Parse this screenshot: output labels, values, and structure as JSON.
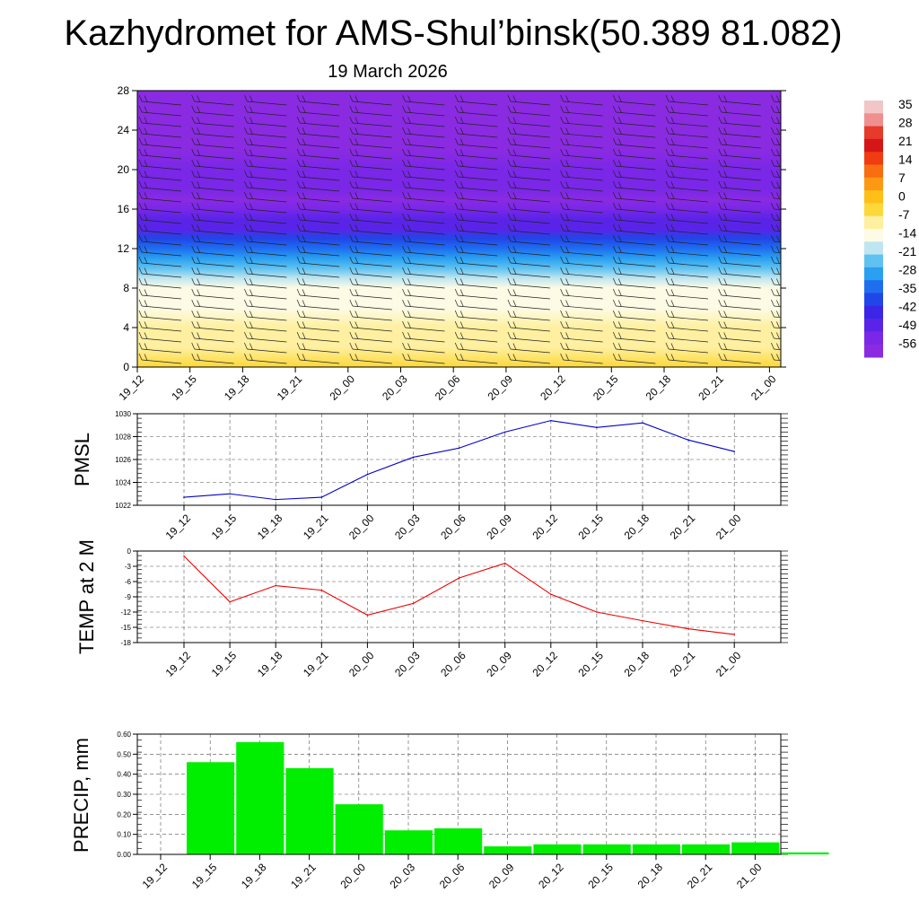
{
  "header": {
    "title": "Kazhydromet for AMS-Shul’binsk(50.389 81.082)",
    "date": "19 March 2026"
  },
  "time_labels": [
    "19_12",
    "19_15",
    "19_18",
    "19_21",
    "20_00",
    "20_03",
    "20_06",
    "20_09",
    "20_12",
    "20_15",
    "20_18",
    "20_21",
    "21_00"
  ],
  "colorbar": {
    "labels": [
      "35",
      "28",
      "21",
      "14",
      "7",
      "0",
      "-7",
      "-14",
      "-21",
      "-28",
      "-35",
      "-42",
      "-49",
      "-56"
    ],
    "colors": [
      "#f2c6c6",
      "#ef8f8f",
      "#e63a2a",
      "#d41616",
      "#f03c10",
      "#f86e10",
      "#fb9a12",
      "#fdbf18",
      "#fdd83a",
      "#fef0a0",
      "#fdfbe6",
      "#bfe5f0",
      "#5fc2f0",
      "#2aa0f0",
      "#1f6ef0",
      "#2146e8",
      "#3a25e8",
      "#5a24e8",
      "#7a27e8",
      "#8a2be2"
    ]
  },
  "chart_data": [
    {
      "type": "heatmap",
      "title": "",
      "xlabel": "",
      "ylabel": "",
      "ylim": [
        0,
        28
      ],
      "y_ticks": [
        0,
        4,
        8,
        12,
        16,
        20,
        24,
        28
      ],
      "x_ticks": [
        "19_12",
        "19_15",
        "19_18",
        "19_21",
        "20_00",
        "20_03",
        "20_06",
        "20_09",
        "20_12",
        "20_15",
        "20_18",
        "20_21",
        "21_00"
      ],
      "levels_km": [
        0,
        2,
        4,
        6,
        8,
        9,
        10,
        11,
        12,
        13,
        14,
        15,
        16,
        17,
        18,
        20,
        22,
        24,
        26,
        28
      ],
      "temperature_profile_C": [
        -5,
        -7,
        -9,
        -12,
        -14,
        -18,
        -24,
        -30,
        -36,
        -42,
        -48,
        -52,
        -56,
        -58,
        -56,
        -57,
        -58,
        -59,
        -60,
        -60
      ],
      "overlay": "wind barbs"
    },
    {
      "type": "line",
      "ylabel": "PMSL",
      "ylim": [
        1022,
        1030
      ],
      "y_ticks": [
        1022,
        1024,
        1026,
        1028,
        1030
      ],
      "categories": [
        "19_12",
        "19_15",
        "19_18",
        "19_21",
        "20_00",
        "20_03",
        "20_06",
        "20_09",
        "20_12",
        "20_15",
        "20_18",
        "20_21",
        "21_00"
      ],
      "series": [
        {
          "color": "#0000cc",
          "values": [
            1022.7,
            1023.0,
            1022.5,
            1022.7,
            1024.7,
            1026.2,
            1027.0,
            1028.4,
            1029.4,
            1028.8,
            1029.2,
            1027.7,
            1026.7
          ]
        }
      ]
    },
    {
      "type": "line",
      "ylabel": "TEMP at 2 M",
      "ylim": [
        -18,
        0
      ],
      "y_ticks": [
        0,
        -3,
        -6,
        -9,
        -12,
        -15,
        -18
      ],
      "categories": [
        "19_12",
        "19_15",
        "19_18",
        "19_21",
        "20_00",
        "20_03",
        "20_06",
        "20_09",
        "20_12",
        "20_15",
        "20_18",
        "20_21",
        "21_00"
      ],
      "series": [
        {
          "color": "#ee0000",
          "values": [
            -1.0,
            -10.0,
            -6.8,
            -7.7,
            -12.6,
            -10.3,
            -5.3,
            -2.4,
            -8.5,
            -12.0,
            -13.7,
            -15.3,
            -16.4
          ]
        }
      ]
    },
    {
      "type": "bar",
      "ylabel": "PRECIP, mm",
      "ylim": [
        0,
        0.6
      ],
      "y_ticks": [
        "0.00",
        "0.10",
        "0.20",
        "0.30",
        "0.40",
        "0.50",
        "0.60"
      ],
      "categories": [
        "19_12",
        "19_15",
        "19_18",
        "19_21",
        "20_00",
        "20_03",
        "20_06",
        "20_09",
        "20_12",
        "20_15",
        "20_18",
        "20_21",
        "21_00"
      ],
      "series": [
        {
          "color": "#00ee00",
          "values": [
            0.46,
            0.56,
            0.43,
            0.25,
            0.12,
            0.13,
            0.04,
            0.05,
            0.05,
            0.05,
            0.05,
            0.06,
            0.01
          ]
        }
      ]
    }
  ]
}
